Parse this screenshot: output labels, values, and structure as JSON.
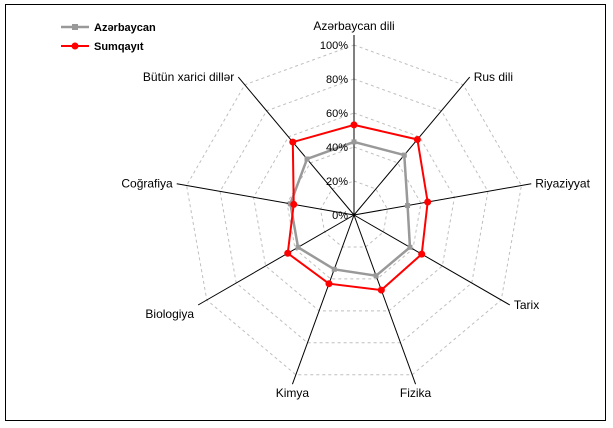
{
  "chart_data": {
    "type": "radar",
    "title": "",
    "categories": [
      "Azərbaycan dili",
      "Rus dili",
      "Riyaziyyat",
      "Tarix",
      "Fizika",
      "Kimya",
      "Biologiya",
      "Coğrafiya",
      "Bütün xarici dillər"
    ],
    "rlim": [
      0,
      100
    ],
    "ticks": [
      "0%",
      "20%",
      "40%",
      "60%",
      "80%",
      "100%"
    ],
    "tick_values": [
      0,
      20,
      40,
      60,
      80,
      100
    ],
    "grid": true,
    "legend_position": "top-left",
    "series": [
      {
        "name": "Azərbaycan",
        "color": "#999999",
        "marker": "square",
        "values": [
          43,
          46,
          32,
          38,
          38,
          34,
          38,
          38,
          43
        ]
      },
      {
        "name": "Sumqayıt",
        "color": "#ff0000",
        "marker": "circle",
        "values": [
          53,
          58,
          44,
          46,
          47,
          43,
          45,
          36,
          56
        ]
      }
    ]
  }
}
